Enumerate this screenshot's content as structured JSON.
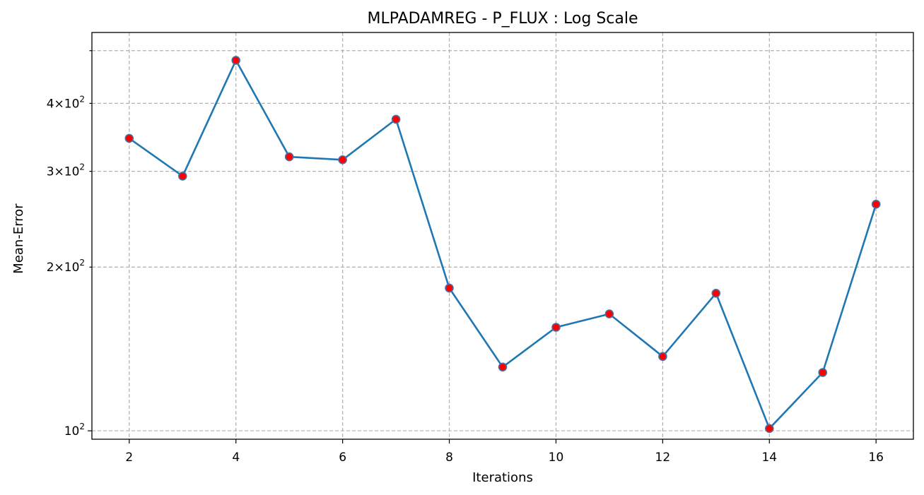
{
  "chart_data": {
    "type": "line",
    "title": "MLPADAMREG - P_FLUX : Log Scale",
    "xlabel": "Iterations",
    "ylabel": "Mean-Error",
    "y_scale": "log",
    "xlim": [
      1.3,
      16.7
    ],
    "ylim": [
      96.5,
      540
    ],
    "grid": true,
    "x_ticks": [
      2,
      4,
      6,
      8,
      10,
      12,
      14,
      16
    ],
    "x_tick_labels": [
      "2",
      "4",
      "6",
      "8",
      "10",
      "12",
      "14",
      "16"
    ],
    "y_major_ticks": [
      {
        "value": 100,
        "base": "10",
        "exp": "2"
      }
    ],
    "y_minor_ticks": [
      {
        "value": 200,
        "mantissa": "2",
        "base": "10",
        "exp": "2"
      },
      {
        "value": 300,
        "mantissa": "3",
        "base": "10",
        "exp": "2"
      },
      {
        "value": 400,
        "mantissa": "4",
        "base": "10",
        "exp": "2"
      },
      {
        "value": 500,
        "mantissa": "",
        "base": "",
        "exp": ""
      }
    ],
    "series": [
      {
        "line_color": "#1f77b4",
        "marker_face": "#ff0000",
        "marker_edge": "#4a6fa5",
        "x": [
          2,
          3,
          4,
          5,
          6,
          7,
          8,
          9,
          10,
          11,
          12,
          13,
          14,
          15,
          16
        ],
        "y": [
          345,
          294,
          480,
          319,
          315,
          374,
          183,
          131,
          155,
          164,
          137,
          179,
          101,
          128,
          261
        ]
      }
    ]
  }
}
